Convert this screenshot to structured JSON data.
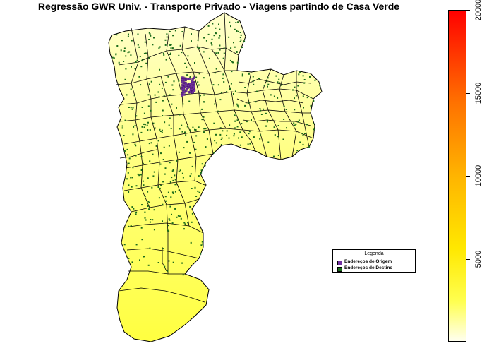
{
  "title": "Regressão GWR Univ. - Transporte Privado - Viagens partindo de Casa Verde",
  "legend": {
    "title": "Legenda",
    "items": [
      {
        "label": "Endereços de Origem",
        "color": "#7030a0"
      },
      {
        "label": "Endereços de Destino",
        "color": "#1a6b1a"
      }
    ]
  },
  "colorbar": {
    "ticks": [
      "5000",
      "10000",
      "15000",
      "20000"
    ],
    "tick_values": [
      5000,
      10000,
      15000,
      20000
    ],
    "min": 0,
    "max": 20000,
    "colors": [
      "#ffffef",
      "#ffff50",
      "#ffe800",
      "#ffb400",
      "#ff7200",
      "#ff0000"
    ]
  },
  "map": {
    "fill_north": "#ffffc0",
    "fill_east": "#ffff70",
    "fill_south": "#ffff44",
    "border_color": "#000000",
    "origin_color": "#7030a0",
    "destination_color": "#1a6b1a"
  }
}
